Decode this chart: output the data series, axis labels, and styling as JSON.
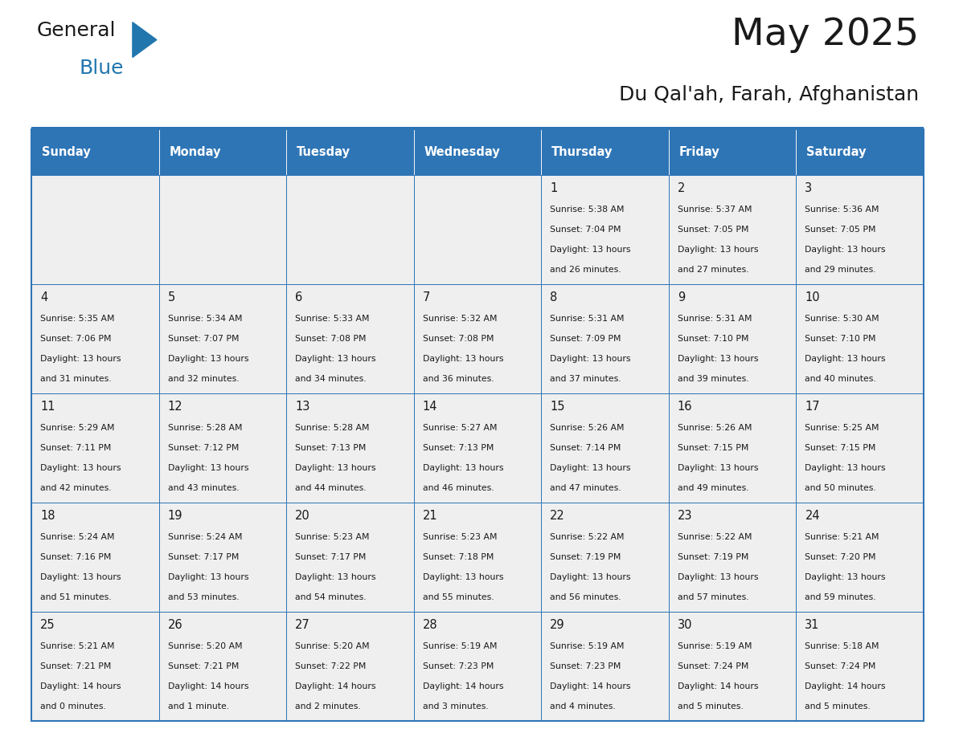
{
  "title": "May 2025",
  "subtitle": "Du Qal'ah, Farah, Afghanistan",
  "header_bg": "#2E75B6",
  "header_text_color": "#FFFFFF",
  "cell_bg_light": "#EFEFEF",
  "cell_bg_white": "#FFFFFF",
  "border_color": "#2E75B6",
  "text_color": "#1a1a1a",
  "days_of_week": [
    "Sunday",
    "Monday",
    "Tuesday",
    "Wednesday",
    "Thursday",
    "Friday",
    "Saturday"
  ],
  "weeks": [
    [
      {
        "day": "",
        "info": ""
      },
      {
        "day": "",
        "info": ""
      },
      {
        "day": "",
        "info": ""
      },
      {
        "day": "",
        "info": ""
      },
      {
        "day": "1",
        "info": "Sunrise: 5:38 AM\nSunset: 7:04 PM\nDaylight: 13 hours\nand 26 minutes."
      },
      {
        "day": "2",
        "info": "Sunrise: 5:37 AM\nSunset: 7:05 PM\nDaylight: 13 hours\nand 27 minutes."
      },
      {
        "day": "3",
        "info": "Sunrise: 5:36 AM\nSunset: 7:05 PM\nDaylight: 13 hours\nand 29 minutes."
      }
    ],
    [
      {
        "day": "4",
        "info": "Sunrise: 5:35 AM\nSunset: 7:06 PM\nDaylight: 13 hours\nand 31 minutes."
      },
      {
        "day": "5",
        "info": "Sunrise: 5:34 AM\nSunset: 7:07 PM\nDaylight: 13 hours\nand 32 minutes."
      },
      {
        "day": "6",
        "info": "Sunrise: 5:33 AM\nSunset: 7:08 PM\nDaylight: 13 hours\nand 34 minutes."
      },
      {
        "day": "7",
        "info": "Sunrise: 5:32 AM\nSunset: 7:08 PM\nDaylight: 13 hours\nand 36 minutes."
      },
      {
        "day": "8",
        "info": "Sunrise: 5:31 AM\nSunset: 7:09 PM\nDaylight: 13 hours\nand 37 minutes."
      },
      {
        "day": "9",
        "info": "Sunrise: 5:31 AM\nSunset: 7:10 PM\nDaylight: 13 hours\nand 39 minutes."
      },
      {
        "day": "10",
        "info": "Sunrise: 5:30 AM\nSunset: 7:10 PM\nDaylight: 13 hours\nand 40 minutes."
      }
    ],
    [
      {
        "day": "11",
        "info": "Sunrise: 5:29 AM\nSunset: 7:11 PM\nDaylight: 13 hours\nand 42 minutes."
      },
      {
        "day": "12",
        "info": "Sunrise: 5:28 AM\nSunset: 7:12 PM\nDaylight: 13 hours\nand 43 minutes."
      },
      {
        "day": "13",
        "info": "Sunrise: 5:28 AM\nSunset: 7:13 PM\nDaylight: 13 hours\nand 44 minutes."
      },
      {
        "day": "14",
        "info": "Sunrise: 5:27 AM\nSunset: 7:13 PM\nDaylight: 13 hours\nand 46 minutes."
      },
      {
        "day": "15",
        "info": "Sunrise: 5:26 AM\nSunset: 7:14 PM\nDaylight: 13 hours\nand 47 minutes."
      },
      {
        "day": "16",
        "info": "Sunrise: 5:26 AM\nSunset: 7:15 PM\nDaylight: 13 hours\nand 49 minutes."
      },
      {
        "day": "17",
        "info": "Sunrise: 5:25 AM\nSunset: 7:15 PM\nDaylight: 13 hours\nand 50 minutes."
      }
    ],
    [
      {
        "day": "18",
        "info": "Sunrise: 5:24 AM\nSunset: 7:16 PM\nDaylight: 13 hours\nand 51 minutes."
      },
      {
        "day": "19",
        "info": "Sunrise: 5:24 AM\nSunset: 7:17 PM\nDaylight: 13 hours\nand 53 minutes."
      },
      {
        "day": "20",
        "info": "Sunrise: 5:23 AM\nSunset: 7:17 PM\nDaylight: 13 hours\nand 54 minutes."
      },
      {
        "day": "21",
        "info": "Sunrise: 5:23 AM\nSunset: 7:18 PM\nDaylight: 13 hours\nand 55 minutes."
      },
      {
        "day": "22",
        "info": "Sunrise: 5:22 AM\nSunset: 7:19 PM\nDaylight: 13 hours\nand 56 minutes."
      },
      {
        "day": "23",
        "info": "Sunrise: 5:22 AM\nSunset: 7:19 PM\nDaylight: 13 hours\nand 57 minutes."
      },
      {
        "day": "24",
        "info": "Sunrise: 5:21 AM\nSunset: 7:20 PM\nDaylight: 13 hours\nand 59 minutes."
      }
    ],
    [
      {
        "day": "25",
        "info": "Sunrise: 5:21 AM\nSunset: 7:21 PM\nDaylight: 14 hours\nand 0 minutes."
      },
      {
        "day": "26",
        "info": "Sunrise: 5:20 AM\nSunset: 7:21 PM\nDaylight: 14 hours\nand 1 minute."
      },
      {
        "day": "27",
        "info": "Sunrise: 5:20 AM\nSunset: 7:22 PM\nDaylight: 14 hours\nand 2 minutes."
      },
      {
        "day": "28",
        "info": "Sunrise: 5:19 AM\nSunset: 7:23 PM\nDaylight: 14 hours\nand 3 minutes."
      },
      {
        "day": "29",
        "info": "Sunrise: 5:19 AM\nSunset: 7:23 PM\nDaylight: 14 hours\nand 4 minutes."
      },
      {
        "day": "30",
        "info": "Sunrise: 5:19 AM\nSunset: 7:24 PM\nDaylight: 14 hours\nand 5 minutes."
      },
      {
        "day": "31",
        "info": "Sunrise: 5:18 AM\nSunset: 7:24 PM\nDaylight: 14 hours\nand 5 minutes."
      }
    ]
  ],
  "logo_color_general": "#1a1a1a",
  "logo_color_blue": "#2176AE",
  "logo_triangle_color": "#2176AE"
}
